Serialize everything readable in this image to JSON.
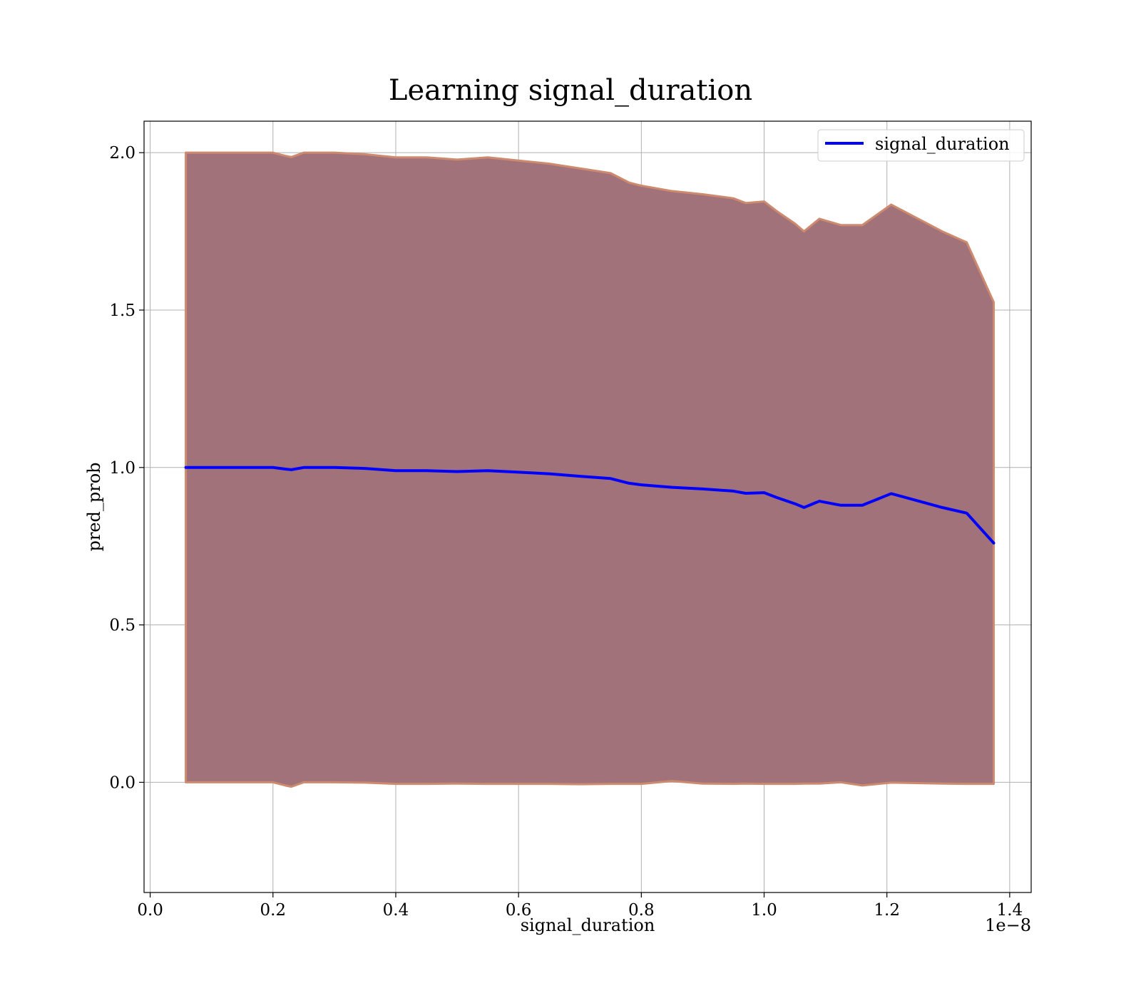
{
  "chart_data": {
    "type": "area",
    "title": "Learning signal_duration",
    "xlabel": "signal_duration",
    "ylabel": "pred_prob",
    "x_offset_label": "1e−8",
    "xlim": [
      -0.01,
      1.435
    ],
    "ylim": [
      -0.35,
      2.1
    ],
    "x_ticks": [
      0.0,
      0.2,
      0.4,
      0.6,
      0.8,
      1.0,
      1.2,
      1.4
    ],
    "x_tick_labels": [
      "0.0",
      "0.2",
      "0.4",
      "0.6",
      "0.8",
      "1.0",
      "1.2",
      "1.4"
    ],
    "y_ticks": [
      0.0,
      0.5,
      1.0,
      1.5,
      2.0
    ],
    "y_tick_labels": [
      "0.0",
      "0.5",
      "1.0",
      "1.5",
      "2.0"
    ],
    "grid": true,
    "legend_position": "top-right",
    "series": [
      {
        "name": "signal_duration",
        "color": "#0000ff",
        "x": [
          0.058,
          0.1,
          0.15,
          0.2,
          0.22,
          0.23,
          0.25,
          0.3,
          0.35,
          0.4,
          0.45,
          0.5,
          0.55,
          0.6,
          0.65,
          0.7,
          0.75,
          0.78,
          0.8,
          0.85,
          0.9,
          0.95,
          0.97,
          1.0,
          1.02,
          1.05,
          1.065,
          1.09,
          1.125,
          1.16,
          1.207,
          1.29,
          1.33,
          1.374
        ],
        "y": [
          1.0,
          1.0,
          1.0,
          1.0,
          0.995,
          0.993,
          1.0,
          1.0,
          0.997,
          0.99,
          0.99,
          0.987,
          0.99,
          0.985,
          0.98,
          0.972,
          0.965,
          0.95,
          0.945,
          0.937,
          0.932,
          0.925,
          0.918,
          0.92,
          0.905,
          0.885,
          0.873,
          0.893,
          0.88,
          0.88,
          0.917,
          0.873,
          0.855,
          0.76
        ]
      }
    ],
    "band": {
      "fill_color": "#a2727a",
      "edge_color": "#cd8a6e",
      "upper": [
        2.0,
        2.0,
        2.0,
        2.0,
        1.99,
        1.986,
        2.0,
        2.0,
        1.995,
        1.985,
        1.985,
        1.978,
        1.985,
        1.975,
        1.965,
        1.95,
        1.935,
        1.905,
        1.895,
        1.878,
        1.868,
        1.855,
        1.84,
        1.845,
        1.815,
        1.775,
        1.75,
        1.79,
        1.77,
        1.77,
        1.835,
        1.75,
        1.715,
        1.525
      ],
      "lower": [
        0.0,
        0.0,
        0.0,
        0.0,
        -0.01,
        -0.014,
        0.0,
        0.0,
        -0.001,
        -0.005,
        -0.005,
        -0.004,
        -0.005,
        -0.005,
        -0.005,
        -0.006,
        -0.005,
        -0.005,
        -0.005,
        0.004,
        -0.004,
        -0.005,
        -0.004,
        -0.005,
        -0.005,
        -0.005,
        -0.004,
        -0.004,
        0.0,
        -0.01,
        -0.001,
        -0.004,
        -0.005,
        -0.005
      ]
    }
  }
}
